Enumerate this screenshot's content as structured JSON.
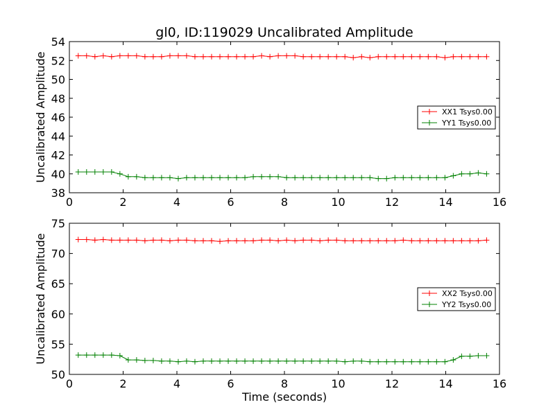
{
  "figure": {
    "title": "gl0, ID:119029 Uncalibrated Amplitude",
    "xlabel": "Time (seconds)"
  },
  "colors": {
    "xx": "#ff0000",
    "yy": "#008000"
  },
  "chart_data": [
    {
      "type": "line",
      "title": "gl0, ID:119029 Uncalibrated Amplitude",
      "xlabel": "",
      "ylabel": "Uncalibrated Amplitude",
      "xlim": [
        0,
        16
      ],
      "ylim": [
        38,
        54
      ],
      "xticks": [
        "0",
        "2",
        "4",
        "6",
        "8",
        "10",
        "12",
        "14",
        "16"
      ],
      "yticks": [
        "38",
        "40",
        "42",
        "44",
        "46",
        "48",
        "50",
        "52",
        "54"
      ],
      "grid": false,
      "legend_position": "right",
      "x": [
        0.33,
        0.64,
        0.95,
        1.26,
        1.57,
        1.88,
        2.19,
        2.5,
        2.81,
        3.12,
        3.43,
        3.74,
        4.05,
        4.36,
        4.67,
        4.98,
        5.29,
        5.6,
        5.91,
        6.22,
        6.53,
        6.84,
        7.15,
        7.46,
        7.77,
        8.08,
        8.39,
        8.7,
        9.01,
        9.32,
        9.63,
        9.94,
        10.25,
        10.56,
        10.87,
        11.18,
        11.49,
        11.8,
        12.11,
        12.42,
        12.73,
        13.04,
        13.35,
        13.66,
        13.97,
        14.28,
        14.59,
        14.9,
        15.21,
        15.52
      ],
      "series": [
        {
          "name": "XX1 Tsys0.00",
          "color": "#ff0000",
          "values": [
            52.5,
            52.5,
            52.4,
            52.5,
            52.4,
            52.5,
            52.5,
            52.5,
            52.4,
            52.4,
            52.4,
            52.5,
            52.5,
            52.5,
            52.4,
            52.4,
            52.4,
            52.4,
            52.4,
            52.4,
            52.4,
            52.4,
            52.5,
            52.4,
            52.5,
            52.5,
            52.5,
            52.4,
            52.4,
            52.4,
            52.4,
            52.4,
            52.4,
            52.3,
            52.4,
            52.3,
            52.4,
            52.4,
            52.4,
            52.4,
            52.4,
            52.4,
            52.4,
            52.4,
            52.3,
            52.4,
            52.4,
            52.4,
            52.4,
            52.4
          ]
        },
        {
          "name": "YY1 Tsys0.00",
          "color": "#008000",
          "values": [
            40.2,
            40.2,
            40.2,
            40.2,
            40.2,
            40.0,
            39.7,
            39.7,
            39.6,
            39.6,
            39.6,
            39.6,
            39.5,
            39.6,
            39.6,
            39.6,
            39.6,
            39.6,
            39.6,
            39.6,
            39.6,
            39.7,
            39.7,
            39.7,
            39.7,
            39.6,
            39.6,
            39.6,
            39.6,
            39.6,
            39.6,
            39.6,
            39.6,
            39.6,
            39.6,
            39.6,
            39.5,
            39.5,
            39.6,
            39.6,
            39.6,
            39.6,
            39.6,
            39.6,
            39.6,
            39.8,
            40.0,
            40.0,
            40.1,
            40.0
          ]
        }
      ]
    },
    {
      "type": "line",
      "title": "",
      "xlabel": "Time (seconds)",
      "ylabel": "Uncalibrated Amplitude",
      "xlim": [
        0,
        16
      ],
      "ylim": [
        50,
        75
      ],
      "xticks": [
        "0",
        "2",
        "4",
        "6",
        "8",
        "10",
        "12",
        "14",
        "16"
      ],
      "yticks": [
        "50",
        "55",
        "60",
        "65",
        "70",
        "75"
      ],
      "grid": false,
      "legend_position": "right",
      "x": [
        0.33,
        0.64,
        0.95,
        1.26,
        1.57,
        1.88,
        2.19,
        2.5,
        2.81,
        3.12,
        3.43,
        3.74,
        4.05,
        4.36,
        4.67,
        4.98,
        5.29,
        5.6,
        5.91,
        6.22,
        6.53,
        6.84,
        7.15,
        7.46,
        7.77,
        8.08,
        8.39,
        8.7,
        9.01,
        9.32,
        9.63,
        9.94,
        10.25,
        10.56,
        10.87,
        11.18,
        11.49,
        11.8,
        12.11,
        12.42,
        12.73,
        13.04,
        13.35,
        13.66,
        13.97,
        14.28,
        14.59,
        14.9,
        15.21,
        15.52
      ],
      "series": [
        {
          "name": "XX2 Tsys0.00",
          "color": "#ff0000",
          "values": [
            72.3,
            72.3,
            72.2,
            72.3,
            72.2,
            72.2,
            72.2,
            72.2,
            72.1,
            72.2,
            72.2,
            72.1,
            72.2,
            72.2,
            72.1,
            72.1,
            72.1,
            72.0,
            72.1,
            72.1,
            72.1,
            72.1,
            72.2,
            72.2,
            72.1,
            72.2,
            72.1,
            72.2,
            72.2,
            72.1,
            72.2,
            72.2,
            72.1,
            72.1,
            72.1,
            72.1,
            72.1,
            72.1,
            72.1,
            72.2,
            72.1,
            72.1,
            72.1,
            72.1,
            72.1,
            72.1,
            72.1,
            72.1,
            72.1,
            72.2
          ]
        },
        {
          "name": "YY2 Tsys0.00",
          "color": "#008000",
          "values": [
            53.2,
            53.2,
            53.2,
            53.2,
            53.2,
            53.1,
            52.4,
            52.4,
            52.3,
            52.3,
            52.2,
            52.2,
            52.1,
            52.2,
            52.1,
            52.2,
            52.2,
            52.2,
            52.2,
            52.2,
            52.2,
            52.2,
            52.2,
            52.2,
            52.2,
            52.2,
            52.2,
            52.2,
            52.2,
            52.2,
            52.2,
            52.2,
            52.1,
            52.2,
            52.2,
            52.1,
            52.1,
            52.1,
            52.1,
            52.1,
            52.1,
            52.1,
            52.1,
            52.1,
            52.1,
            52.4,
            53.0,
            53.0,
            53.1,
            53.1
          ]
        }
      ]
    }
  ]
}
